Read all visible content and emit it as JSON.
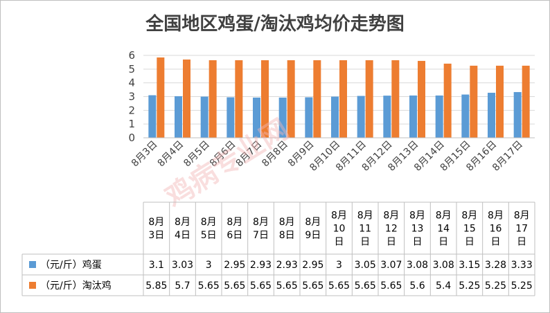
{
  "chart_data": {
    "type": "bar",
    "title": "全国地区鸡蛋/淘汰鸡均价走势图",
    "categories": [
      "8月3日",
      "8月4日",
      "8月5日",
      "8月6日",
      "8月7日",
      "8月8日",
      "8月9日",
      "8月10日",
      "8月11日",
      "8月12日",
      "8月13日",
      "8月14日",
      "8月15日",
      "8月16日",
      "8月17日"
    ],
    "table_headers": [
      "8月\n3日",
      "8月\n4日",
      "8月\n5日",
      "8月\n6日",
      "8月\n7日",
      "8月\n8日",
      "8月\n9日",
      "8月\n10\n日",
      "8月\n11\n日",
      "8月\n12\n日",
      "8月\n13\n日",
      "8月\n14\n日",
      "8月\n15\n日",
      "8月\n16\n日",
      "8月\n17\n日"
    ],
    "series": [
      {
        "name": "（元/斤）鸡蛋",
        "color": "#5b9bd5",
        "values": [
          3.1,
          3.03,
          3,
          2.95,
          2.93,
          2.93,
          2.95,
          3,
          3.05,
          3.07,
          3.08,
          3.08,
          3.15,
          3.28,
          3.33
        ]
      },
      {
        "name": "（元/斤）淘汰鸡",
        "color": "#ed7d31",
        "values": [
          5.85,
          5.7,
          5.65,
          5.65,
          5.65,
          5.65,
          5.65,
          5.65,
          5.65,
          5.65,
          5.6,
          5.4,
          5.25,
          5.25,
          5.25
        ]
      }
    ],
    "ylim": [
      0,
      6
    ],
    "yticks": [
      0,
      1,
      2,
      3,
      4,
      5,
      6
    ],
    "grid": true,
    "legend": "data-table"
  },
  "watermark": "鸡病专业网"
}
